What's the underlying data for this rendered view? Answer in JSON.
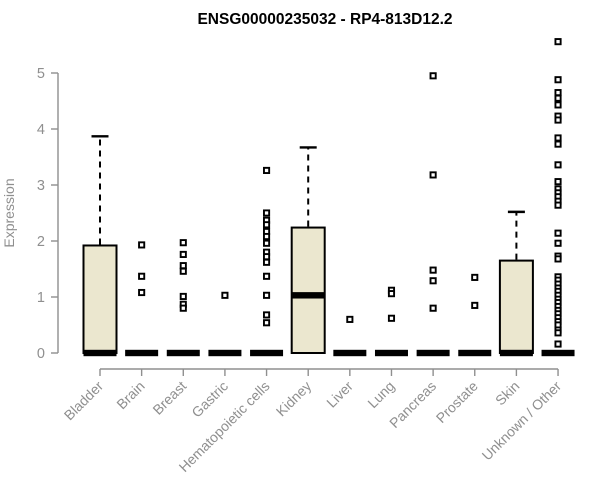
{
  "style": {
    "background": "#ffffff",
    "axis_color": "#8f8f8f",
    "box_fill": "#ebe7cf",
    "box_border": "#000000",
    "median_color": "#000000",
    "whisker_color": "#000000",
    "outlier_stroke": "#000000",
    "outlier_fill": "#ffffff",
    "title_color": "#000000"
  },
  "chart_data": {
    "type": "boxplot",
    "title": "ENSG00000235032 - RP4-813D12.2",
    "ylabel": "Expression",
    "xlabel": "",
    "ylim": [
      0,
      5.6
    ],
    "yticks": [
      0,
      1,
      2,
      3,
      4,
      5
    ],
    "grid": false,
    "legend": null,
    "categories": [
      "Bladder",
      "Brain",
      "Breast",
      "Gastric",
      "Hematopoietic cells",
      "Kidney",
      "Liver",
      "Lung",
      "Pancreas",
      "Prostate",
      "Skin",
      "Unknown / Other"
    ],
    "boxes": [
      {
        "category": "Bladder",
        "whisker_low": 0,
        "q1": 0,
        "median": 0,
        "q3": 1.92,
        "whisker_high": 3.87,
        "outliers": []
      },
      {
        "category": "Brain",
        "whisker_low": 0,
        "q1": 0,
        "median": 0,
        "q3": 0,
        "whisker_high": 0,
        "outliers": [
          1.93,
          1.37,
          1.08
        ]
      },
      {
        "category": "Breast",
        "whisker_low": 0,
        "q1": 0,
        "median": 0,
        "q3": 0,
        "whisker_high": 0,
        "outliers": [
          1.97,
          1.76,
          1.56,
          1.46,
          1.01,
          0.87,
          0.8
        ]
      },
      {
        "category": "Gastric",
        "whisker_low": 0,
        "q1": 0,
        "median": 0,
        "q3": 0,
        "whisker_high": 0,
        "outliers": [
          1.03
        ]
      },
      {
        "category": "Hematopoietic cells",
        "whisker_low": 0,
        "q1": 0,
        "median": 0,
        "q3": 0,
        "whisker_high": 0,
        "outliers": [
          3.26,
          2.5,
          2.37,
          2.29,
          2.17,
          2.08,
          1.96,
          1.8,
          1.72,
          1.62,
          1.37,
          1.03,
          0.68,
          0.54
        ]
      },
      {
        "category": "Kidney",
        "whisker_low": 0,
        "q1": 0,
        "median": 1.03,
        "q3": 2.24,
        "whisker_high": 3.67,
        "outliers": []
      },
      {
        "category": "Liver",
        "whisker_low": 0,
        "q1": 0,
        "median": 0,
        "q3": 0,
        "whisker_high": 0,
        "outliers": [
          0.6
        ]
      },
      {
        "category": "Lung",
        "whisker_low": 0,
        "q1": 0,
        "median": 0,
        "q3": 0,
        "whisker_high": 0,
        "outliers": [
          1.12,
          1.06,
          0.62
        ]
      },
      {
        "category": "Pancreas",
        "whisker_low": 0,
        "q1": 0,
        "median": 0,
        "q3": 0,
        "whisker_high": 0,
        "outliers": [
          4.95,
          3.18,
          1.48,
          1.29,
          0.8
        ]
      },
      {
        "category": "Prostate",
        "whisker_low": 0,
        "q1": 0,
        "median": 0,
        "q3": 0,
        "whisker_high": 0,
        "outliers": [
          1.35,
          0.85
        ]
      },
      {
        "category": "Skin",
        "whisker_low": 0,
        "q1": 0,
        "median": 0,
        "q3": 1.65,
        "whisker_high": 2.52,
        "outliers": []
      },
      {
        "category": "Unknown / Other",
        "whisker_low": 0,
        "q1": 0,
        "median": 0,
        "q3": 0,
        "whisker_high": 0,
        "outliers": [
          5.56,
          4.88,
          4.65,
          4.55,
          4.43,
          4.23,
          4.16,
          3.84,
          3.73,
          3.36,
          3.06,
          2.93,
          2.86,
          2.79,
          2.71,
          2.64,
          2.14,
          1.96,
          1.73,
          1.68,
          1.36,
          1.3,
          1.23,
          1.16,
          1.1,
          1.03,
          0.96,
          0.9,
          0.83,
          0.76,
          0.7,
          0.63,
          0.56,
          0.5,
          0.41,
          0.36,
          0.16
        ]
      }
    ]
  }
}
